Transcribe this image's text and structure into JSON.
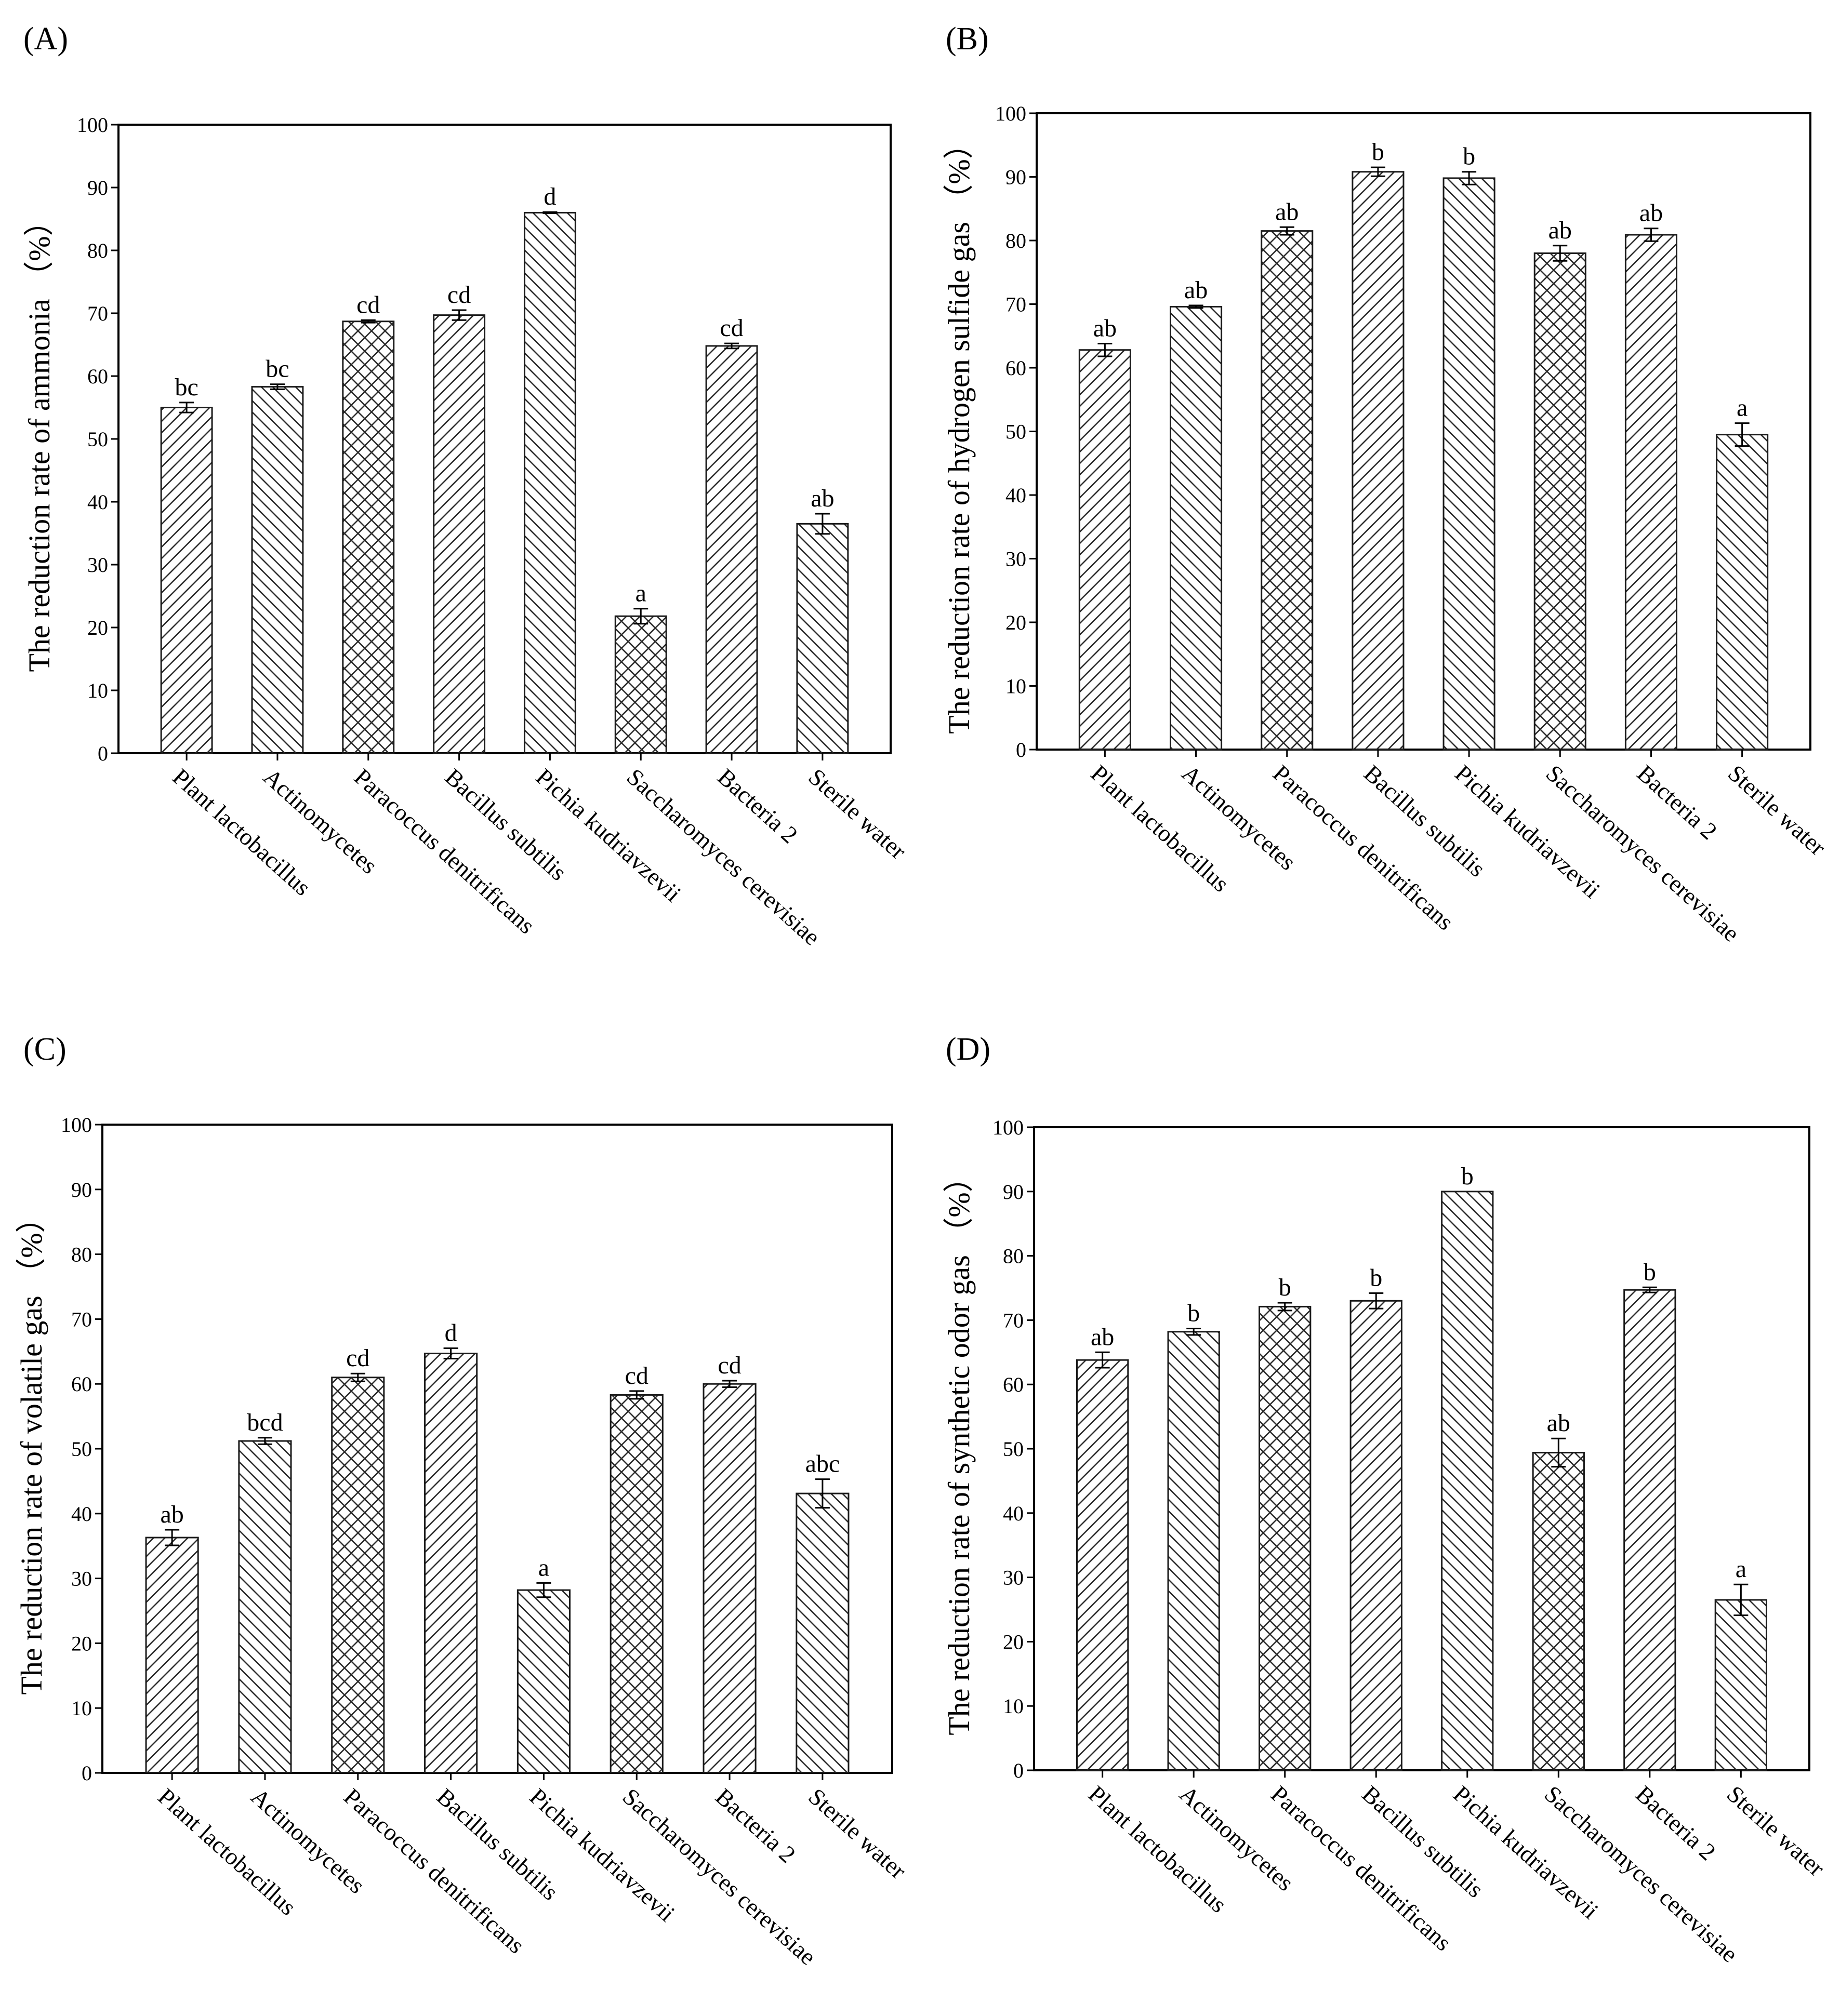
{
  "figure_categories": [
    "Plant lactobacillus",
    "Actinomycetes",
    "Paracoccus denitrificans",
    "Bacillus subtilis",
    "Pichia kudriavzevii",
    "Saccharomyces cerevisiae",
    "Bacteria 2",
    "Sterile water"
  ],
  "chart_data": [
    {
      "panel": "(A)",
      "type": "bar",
      "title": "",
      "xlabel": "",
      "ylabel": "The reduction rate of ammonia （%）",
      "ylim": [
        0,
        100
      ],
      "yticks": [
        0,
        10,
        20,
        30,
        40,
        50,
        60,
        70,
        80,
        90,
        100
      ],
      "categories": [
        "Plant lactobacillus",
        "Actinomycetes",
        "Paracoccus denitrificans",
        "Bacillus subtilis",
        "Pichia kudriavzevii",
        "Saccharomyces cerevisiae",
        "Bacteria 2",
        "Sterile water"
      ],
      "values": [
        55,
        58.3,
        68.7,
        69.7,
        86,
        21.8,
        64.8,
        36.5
      ],
      "errors": [
        0.8,
        0.4,
        0.2,
        0.8,
        0.1,
        1.2,
        0.4,
        1.6
      ],
      "significance": [
        "bc",
        "bc",
        "cd",
        "cd",
        "d",
        "a",
        "cd",
        "ab"
      ],
      "patterns": [
        "fwd",
        "back",
        "cross",
        "fwd",
        "back",
        "cross",
        "fwd",
        "back"
      ]
    },
    {
      "panel": "(B)",
      "type": "bar",
      "title": "",
      "xlabel": "",
      "ylabel": "The reduction rate of hydrogen sulfide gas （%）",
      "ylim": [
        0,
        100
      ],
      "yticks": [
        0,
        10,
        20,
        30,
        40,
        50,
        60,
        70,
        80,
        90,
        100
      ],
      "categories": [
        "Plant lactobacillus",
        "Actinomycetes",
        "Paracoccus denitrificans",
        "Bacillus subtilis",
        "Pichia kudriavzevii",
        "Saccharomyces cerevisiae",
        "Bacteria 2",
        "Sterile water"
      ],
      "values": [
        62.8,
        69.6,
        81.5,
        90.8,
        89.8,
        78,
        80.9,
        49.5
      ],
      "errors": [
        1.0,
        0.2,
        0.6,
        0.7,
        1.0,
        1.2,
        1.0,
        1.8
      ],
      "significance": [
        "ab",
        "ab",
        "ab",
        "b",
        "b",
        "ab",
        "ab",
        "a"
      ],
      "patterns": [
        "fwd",
        "back",
        "cross",
        "fwd",
        "back",
        "cross",
        "fwd",
        "back"
      ]
    },
    {
      "panel": "(C)",
      "type": "bar",
      "title": "",
      "xlabel": "",
      "ylabel": "The reduction rate of volatile gas （%）",
      "ylim": [
        0,
        100
      ],
      "yticks": [
        0,
        10,
        20,
        30,
        40,
        50,
        60,
        70,
        80,
        90,
        100
      ],
      "categories": [
        "Plant lactobacillus",
        "Actinomycetes",
        "Paracoccus denitrificans",
        "Bacillus subtilis",
        "Pichia kudriavzevii",
        "Saccharomyces cerevisiae",
        "Bacteria 2",
        "Sterile water"
      ],
      "values": [
        36.3,
        51.2,
        61,
        64.7,
        28.2,
        58.3,
        60,
        43.1
      ],
      "errors": [
        1.2,
        0.5,
        0.6,
        0.8,
        1.1,
        0.6,
        0.5,
        2.2
      ],
      "significance": [
        "ab",
        "bcd",
        "cd",
        "d",
        "a",
        "cd",
        "cd",
        "abc"
      ],
      "patterns": [
        "fwd",
        "back",
        "cross",
        "fwd",
        "back",
        "cross",
        "fwd",
        "back"
      ]
    },
    {
      "panel": "(D)",
      "type": "bar",
      "title": "",
      "xlabel": "",
      "ylabel": "The reduction rate of synthetic odor gas （%）",
      "ylim": [
        0,
        100
      ],
      "yticks": [
        0,
        10,
        20,
        30,
        40,
        50,
        60,
        70,
        80,
        90,
        100
      ],
      "categories": [
        "Plant lactobacillus",
        "Actinomycetes",
        "Paracoccus denitrificans",
        "Bacillus subtilis",
        "Pichia kudriavzevii",
        "Saccharomyces cerevisiae",
        "Bacteria 2",
        "Sterile water"
      ],
      "values": [
        63.8,
        68.2,
        72.1,
        73,
        90,
        49.4,
        74.7,
        26.5
      ],
      "errors": [
        1.2,
        0.5,
        0.6,
        1.2,
        0.0,
        2.2,
        0.4,
        2.4
      ],
      "significance": [
        "ab",
        "b",
        "b",
        "b",
        "b",
        "ab",
        "b",
        "a"
      ],
      "patterns": [
        "fwd",
        "back",
        "cross",
        "fwd",
        "back",
        "cross",
        "fwd",
        "back"
      ]
    }
  ],
  "colors": {
    "axis": "#000000",
    "bar_stroke": "#1a1a1a",
    "hatch": "#2a2a2a",
    "background": "#ffffff"
  }
}
